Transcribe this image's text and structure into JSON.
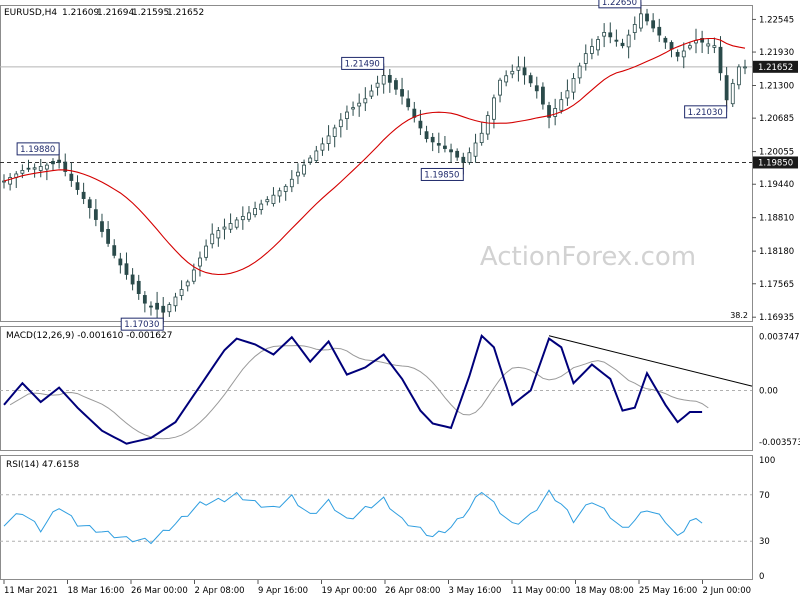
{
  "chart_data": [
    {
      "type": "candlestick",
      "title": "EURUSD,H4",
      "ohlc_readout": [
        "1.21609",
        "1.21694",
        "1.21595",
        "1.21652"
      ],
      "watermark": "ActionForex.com",
      "ylim": [
        1.1692,
        1.2276
      ],
      "y_ticks": [
        "1.22545",
        "1.21930",
        "1.21300",
        "1.20685",
        "1.20055",
        "1.19440",
        "1.18810",
        "1.18180",
        "1.17565",
        "1.16935"
      ],
      "x_ticks": [
        "11 Mar 2021",
        "18 Mar 16:00",
        "26 Mar 00:00",
        "2 Apr 08:00",
        "9 Apr 16:00",
        "19 Apr 00:00",
        "26 Apr 08:00",
        "3 May 16:00",
        "11 May 00:00",
        "18 May 08:00",
        "25 May 16:00",
        "2 Jun 00:00"
      ],
      "current_price": "1.21652",
      "support_level": "1.19850",
      "fib_label": "38.2",
      "annotations": [
        {
          "label": "1.19880",
          "bar": 9
        },
        {
          "label": "1.17030",
          "bar": 26
        },
        {
          "label": "1.21490",
          "bar": 62
        },
        {
          "label": "1.19850",
          "bar": 75
        },
        {
          "label": "1.22650",
          "bar": 104
        },
        {
          "label": "1.21030",
          "bar": 118
        }
      ],
      "close_waypoints": [
        [
          0,
          1.195
        ],
        [
          3,
          1.197
        ],
        [
          9,
          1.1985
        ],
        [
          14,
          1.19
        ],
        [
          18,
          1.181
        ],
        [
          23,
          1.172
        ],
        [
          26,
          1.1703
        ],
        [
          30,
          1.176
        ],
        [
          34,
          1.185
        ],
        [
          40,
          1.189
        ],
        [
          46,
          1.194
        ],
        [
          52,
          1.202
        ],
        [
          56,
          1.208
        ],
        [
          59,
          1.2105
        ],
        [
          62,
          1.2149
        ],
        [
          65,
          1.211
        ],
        [
          69,
          1.203
        ],
        [
          73,
          1.2005
        ],
        [
          75,
          1.1985
        ],
        [
          78,
          1.204
        ],
        [
          81,
          1.214
        ],
        [
          84,
          1.2165
        ],
        [
          87,
          1.212
        ],
        [
          89,
          1.207
        ],
        [
          92,
          1.212
        ],
        [
          95,
          1.219
        ],
        [
          98,
          1.223
        ],
        [
          101,
          1.2205
        ],
        [
          104,
          1.2265
        ],
        [
          107,
          1.2225
        ],
        [
          110,
          1.2185
        ],
        [
          113,
          1.2215
        ],
        [
          116,
          1.2205
        ],
        [
          118,
          1.2103
        ],
        [
          120,
          1.2165
        ]
      ],
      "moving_average": {
        "name": "",
        "period": 20
      }
    },
    {
      "type": "line",
      "title": "MACD(12,26,9) -0.001610 -0.001627",
      "ylim": [
        -0.004,
        0.0042
      ],
      "y_ticks": [
        "0.003747",
        "0.00",
        "-0.003573"
      ],
      "series_main": [
        [
          0,
          -0.001
        ],
        [
          3,
          0.0005
        ],
        [
          6,
          -0.0008
        ],
        [
          9,
          0.0002
        ],
        [
          12,
          -0.0012
        ],
        [
          16,
          -0.0028
        ],
        [
          20,
          -0.0037
        ],
        [
          24,
          -0.0033
        ],
        [
          28,
          -0.0022
        ],
        [
          32,
          0.0003
        ],
        [
          36,
          0.0028
        ],
        [
          38,
          0.0036
        ],
        [
          41,
          0.0032
        ],
        [
          44,
          0.0025
        ],
        [
          47,
          0.0037
        ],
        [
          50,
          0.002
        ],
        [
          53,
          0.0034
        ],
        [
          56,
          0.0011
        ],
        [
          59,
          0.0016
        ],
        [
          62,
          0.0025
        ],
        [
          65,
          0.0008
        ],
        [
          68,
          -0.0014
        ],
        [
          70,
          -0.0023
        ],
        [
          73,
          -0.0026
        ],
        [
          76,
          0.001
        ],
        [
          78,
          0.0038
        ],
        [
          80,
          0.003
        ],
        [
          83,
          -0.001
        ],
        [
          86,
          0.0
        ],
        [
          89,
          0.0036
        ],
        [
          91,
          0.003
        ],
        [
          93,
          0.0005
        ],
        [
          96,
          0.0018
        ],
        [
          99,
          0.0008
        ],
        [
          101,
          -0.0014
        ],
        [
          103,
          -0.0012
        ],
        [
          105,
          0.0012
        ],
        [
          108,
          -0.001
        ],
        [
          110,
          -0.0022
        ],
        [
          112,
          -0.0015
        ]
      ],
      "trendline": [
        [
          89,
          0.0038
        ],
        [
          121,
          0.0003
        ]
      ]
    },
    {
      "type": "line",
      "title": "RSI(14) 47.6158",
      "ylim": [
        0,
        100
      ],
      "y_ticks": [
        "100",
        "70",
        "30",
        "0"
      ],
      "levels": [
        70,
        30
      ],
      "series_main": [
        [
          0,
          45
        ],
        [
          3,
          55
        ],
        [
          6,
          40
        ],
        [
          9,
          60
        ],
        [
          12,
          45
        ],
        [
          16,
          38
        ],
        [
          20,
          32
        ],
        [
          24,
          30
        ],
        [
          28,
          45
        ],
        [
          32,
          62
        ],
        [
          36,
          66
        ],
        [
          38,
          70
        ],
        [
          41,
          63
        ],
        [
          44,
          58
        ],
        [
          47,
          68
        ],
        [
          50,
          52
        ],
        [
          53,
          64
        ],
        [
          56,
          48
        ],
        [
          59,
          58
        ],
        [
          62,
          66
        ],
        [
          65,
          48
        ],
        [
          68,
          40
        ],
        [
          70,
          34
        ],
        [
          73,
          42
        ],
        [
          76,
          58
        ],
        [
          78,
          74
        ],
        [
          80,
          62
        ],
        [
          83,
          44
        ],
        [
          86,
          52
        ],
        [
          89,
          72
        ],
        [
          91,
          62
        ],
        [
          93,
          48
        ],
        [
          96,
          65
        ],
        [
          99,
          52
        ],
        [
          101,
          40
        ],
        [
          103,
          48
        ],
        [
          105,
          58
        ],
        [
          108,
          48
        ],
        [
          110,
          33
        ],
        [
          112,
          47.6
        ]
      ]
    }
  ]
}
